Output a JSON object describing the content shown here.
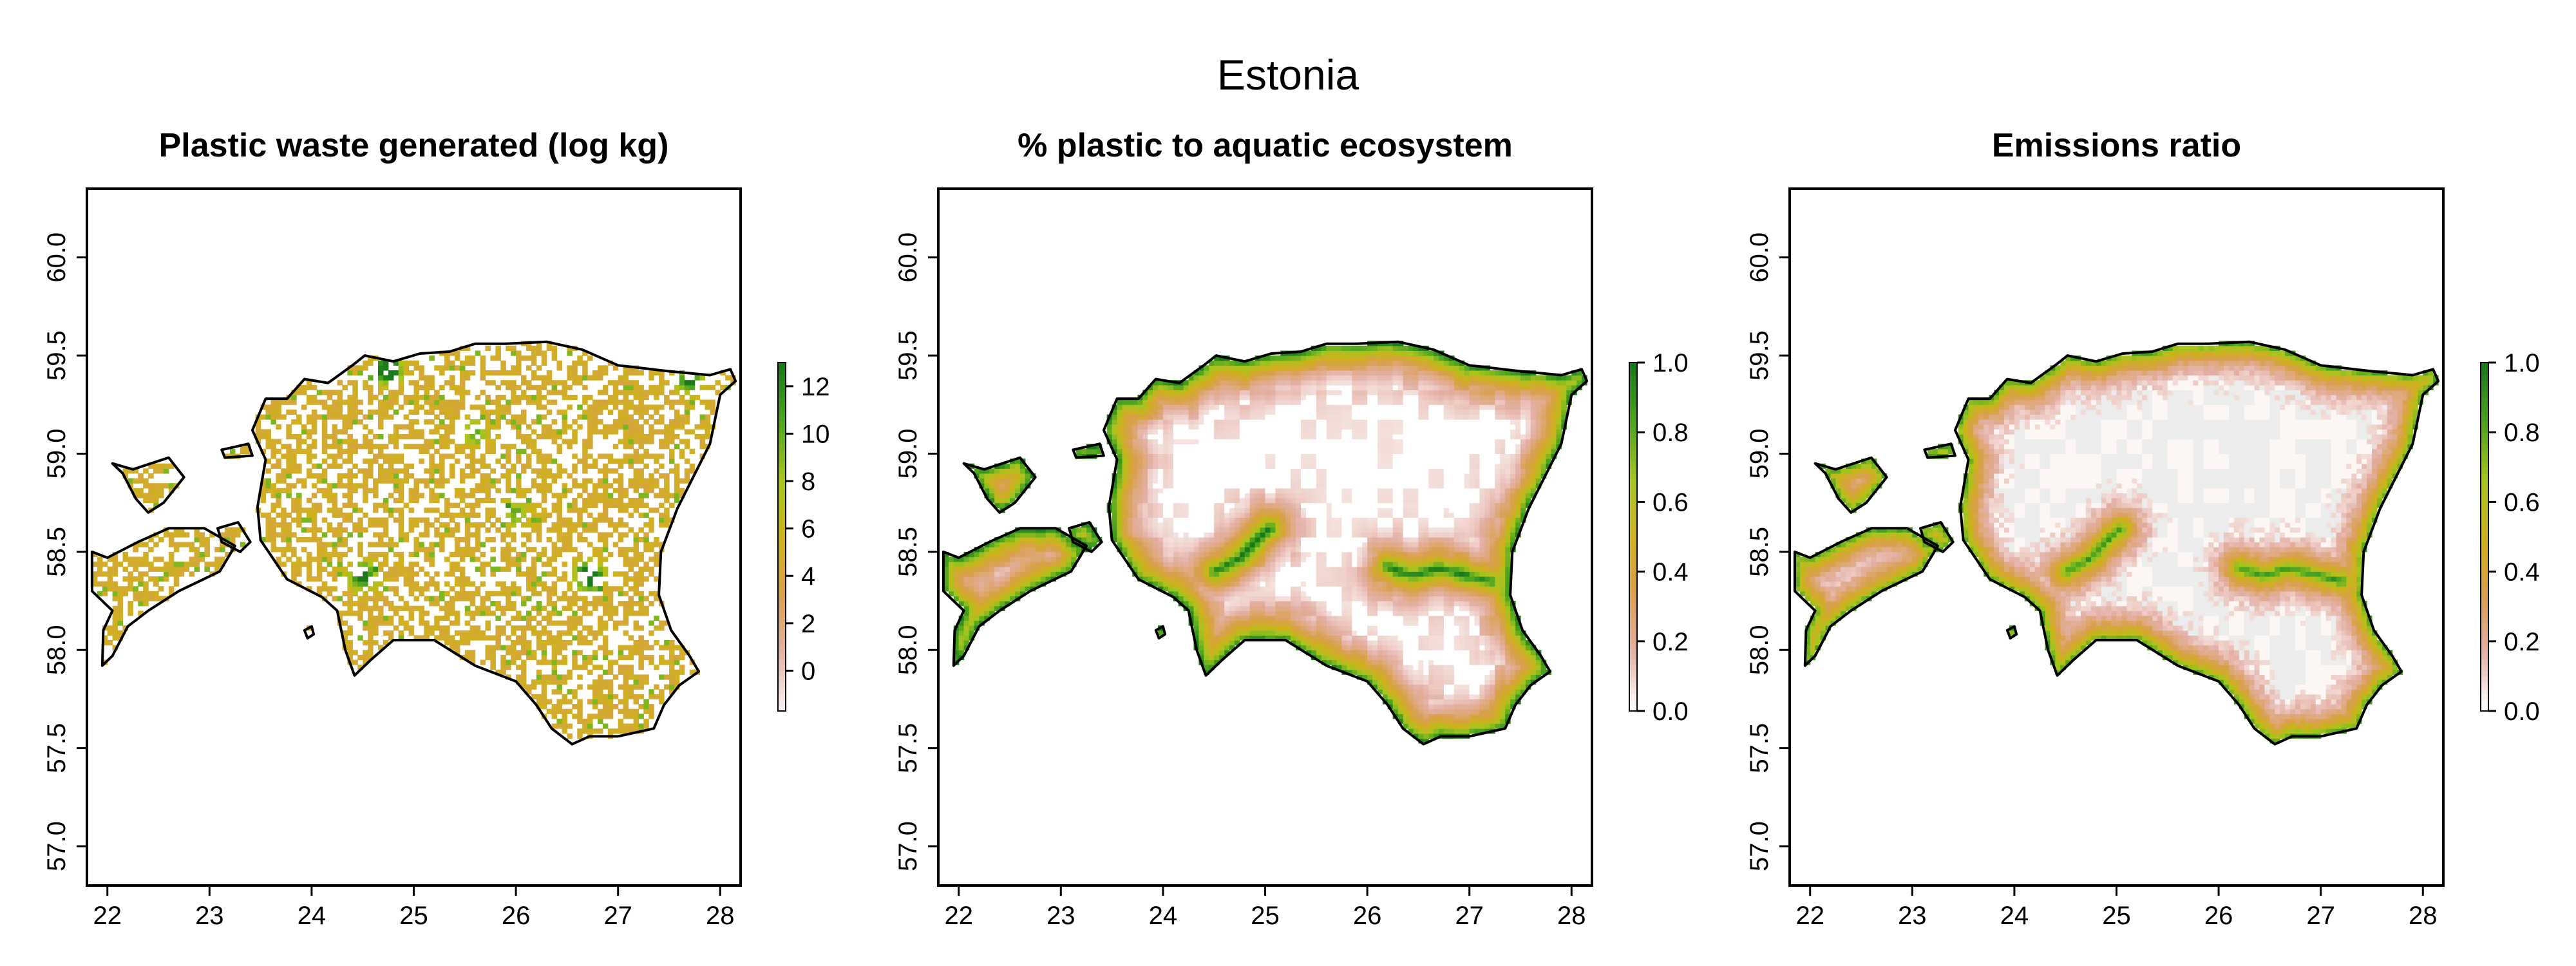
{
  "title": "Estonia",
  "map_data": {
    "region": "Estonia",
    "xlim": [
      21.8,
      28.2
    ],
    "ylim": [
      56.8,
      60.35
    ],
    "x_ticks": [
      "22",
      "23",
      "24",
      "25",
      "26",
      "27",
      "28"
    ],
    "y_ticks": [
      "57.0",
      "57.5",
      "58.0",
      "58.5",
      "59.0",
      "59.5",
      "60.0"
    ],
    "panels": [
      {
        "id": "waste",
        "title": "Plastic waste generated (log kg)",
        "colorbar": {
          "ticks": [
            "0",
            "2",
            "4",
            "6",
            "8",
            "10",
            "12"
          ],
          "range": [
            -1.7,
            13.0
          ]
        },
        "palette": [
          "#f7f1ef",
          "#e3b0a4",
          "#d9a04e",
          "#cfb21d",
          "#a7c51f",
          "#4ea51f",
          "#1a7a1a"
        ]
      },
      {
        "id": "aquatic",
        "title": "% plastic to aquatic ecosystem",
        "colorbar": {
          "ticks": [
            "0.0",
            "0.2",
            "0.4",
            "0.6",
            "0.8",
            "1.0"
          ],
          "range": [
            0.0,
            1.0
          ]
        },
        "palette": [
          "#ffffff",
          "#e3b0a4",
          "#d9a04e",
          "#cfb21d",
          "#a7c51f",
          "#4ea51f",
          "#1a7a1a"
        ]
      },
      {
        "id": "emissions",
        "title": "Emissions ratio",
        "colorbar": {
          "ticks": [
            "0.0",
            "0.2",
            "0.4",
            "0.6",
            "0.8",
            "1.0"
          ],
          "range": [
            0.0,
            1.0
          ]
        },
        "palette": [
          "#ffffff",
          "#e3b0a4",
          "#d9a04e",
          "#cfb21d",
          "#a7c51f",
          "#4ea51f",
          "#1a7a1a"
        ]
      }
    ]
  }
}
